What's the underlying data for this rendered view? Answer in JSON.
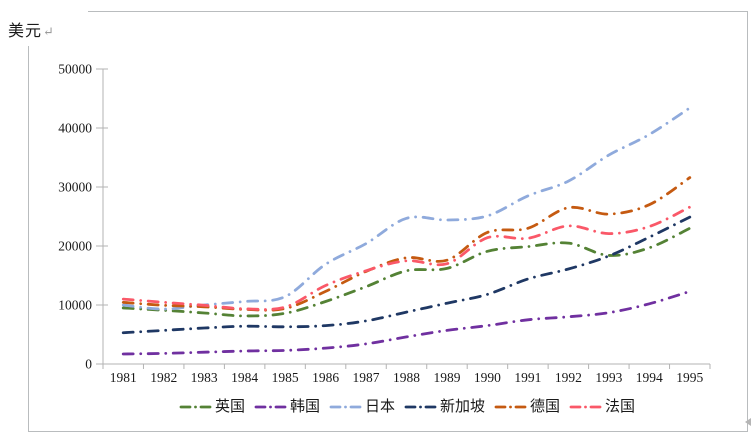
{
  "page": {
    "unit_label": "美元",
    "return_mark": "↵"
  },
  "chart_data": {
    "type": "line",
    "title": "",
    "ylabel_unit": "美元",
    "x": [
      1981,
      1982,
      1983,
      1984,
      1985,
      1986,
      1987,
      1988,
      1989,
      1990,
      1991,
      1992,
      1993,
      1994,
      1995
    ],
    "series": [
      {
        "name": "英国",
        "color": "#548235",
        "values": [
          9500,
          9100,
          8650,
          8150,
          8600,
          10600,
          13100,
          15800,
          16200,
          19100,
          19900,
          20500,
          18400,
          19700,
          23000
        ]
      },
      {
        "name": "韩国",
        "color": "#7030a0",
        "values": [
          1700,
          1800,
          2000,
          2200,
          2300,
          2700,
          3400,
          4600,
          5700,
          6500,
          7500,
          8000,
          8700,
          10200,
          12300
        ]
      },
      {
        "name": "日本",
        "color": "#8faadc",
        "values": [
          10000,
          9300,
          10000,
          10600,
          11400,
          16900,
          20400,
          24700,
          24400,
          25100,
          28500,
          31000,
          35400,
          38900,
          43400
        ]
      },
      {
        "name": "新加坡",
        "color": "#1f3864",
        "values": [
          5300,
          5700,
          6100,
          6400,
          6300,
          6500,
          7300,
          8800,
          10300,
          11800,
          14400,
          16100,
          18300,
          21500,
          24900
        ]
      },
      {
        "name": "德国",
        "color": "#c55a11",
        "values": [
          10450,
          9950,
          9700,
          9250,
          9400,
          12300,
          15700,
          18000,
          17600,
          22300,
          23000,
          26500,
          25400,
          27000,
          31600
        ]
      },
      {
        "name": "法国",
        "color": "#fa5868",
        "values": [
          11000,
          10450,
          9950,
          9350,
          9650,
          13300,
          15800,
          17500,
          17000,
          21400,
          21300,
          23400,
          22100,
          23300,
          26600
        ]
      }
    ],
    "ylim": [
      0,
      50000
    ],
    "yticks": [
      0,
      10000,
      20000,
      30000,
      40000,
      50000
    ],
    "grid": false,
    "legend_position": "bottom",
    "line_style": "smooth dash-dot",
    "axis_color": "#b3b3b3"
  }
}
